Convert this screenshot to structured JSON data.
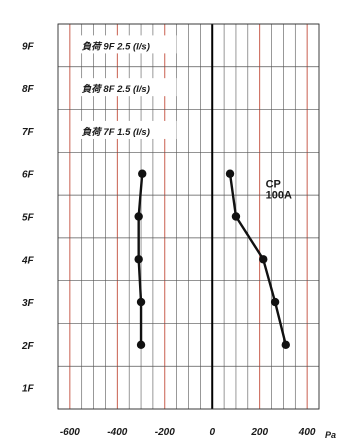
{
  "chart_data": {
    "type": "line",
    "title": "",
    "xlabel": "",
    "ylabel": "",
    "x_unit_label": "Pa",
    "xlim": [
      -650,
      450
    ],
    "x_ticks": [
      -600,
      -400,
      -200,
      0,
      200,
      400
    ],
    "x_tick_labels": [
      "-600",
      "-400",
      "-200",
      "0",
      "200",
      "400"
    ],
    "floors": [
      "1F",
      "2F",
      "3F",
      "4F",
      "5F",
      "6F",
      "7F",
      "8F",
      "9F"
    ],
    "grid": true,
    "load_labels": [
      {
        "floor": "9F",
        "prefix": "負荷",
        "text": "9F 2.5 (l/s)"
      },
      {
        "floor": "8F",
        "prefix": "負荷",
        "text": "8F 2.5 (l/s)"
      },
      {
        "floor": "7F",
        "prefix": "負荷",
        "text": "7F 1.5 (l/s)"
      }
    ],
    "series": [
      {
        "name": "",
        "color": "#111111",
        "points": [
          {
            "x": -300,
            "floor": "2F"
          },
          {
            "x": -300,
            "floor": "3F"
          },
          {
            "x": -310,
            "floor": "4F"
          },
          {
            "x": -310,
            "floor": "5F"
          },
          {
            "x": -295,
            "floor": "6F"
          }
        ]
      },
      {
        "name": "CP 100A",
        "label_lines": [
          "CP",
          "100A"
        ],
        "color": "#111111",
        "points": [
          {
            "x": 310,
            "floor": "2F"
          },
          {
            "x": 265,
            "floor": "3F"
          },
          {
            "x": 215,
            "floor": "4F"
          },
          {
            "x": 100,
            "floor": "5F"
          },
          {
            "x": 75,
            "floor": "6F"
          }
        ]
      }
    ]
  }
}
